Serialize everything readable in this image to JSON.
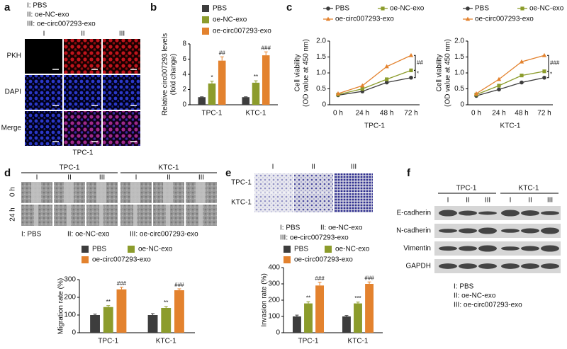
{
  "panel_labels": [
    "a",
    "b",
    "c",
    "d",
    "e",
    "f"
  ],
  "panel_a": {
    "legend": [
      "I: PBS",
      "II: oe-NC-exo",
      "III: oe-circ007293-exo"
    ],
    "columns": [
      "I",
      "II",
      "III"
    ],
    "rows": [
      "PKH",
      "DAPI",
      "Merge"
    ],
    "caption": "TPC-1"
  },
  "chart_data": [
    {
      "type": "bar",
      "ylabel": [
        "Relative circ007293 levels",
        "(fold change)"
      ],
      "categories": [
        "TPC-1",
        "KTC-1"
      ],
      "ylim": [
        0,
        8
      ],
      "yticks": [
        0,
        2,
        4,
        6,
        8
      ],
      "series": [
        {
          "name": "PBS",
          "color": "#3d3d3d",
          "values": [
            1,
            1
          ],
          "errors": [
            0.05,
            0.05
          ]
        },
        {
          "name": "oe-NC-exo",
          "color": "#8c9c2c",
          "values": [
            2.8,
            2.9
          ],
          "errors": [
            0.3,
            0.25
          ],
          "annotations": [
            "*",
            "**"
          ]
        },
        {
          "name": "oe-circ007293-exo",
          "color": "#e3822e",
          "values": [
            5.8,
            6.5
          ],
          "errors": [
            0.5,
            0.45
          ],
          "annotations": [
            "##",
            "###"
          ]
        }
      ]
    },
    {
      "type": "line",
      "ylabel": [
        "Cell viability",
        "(OD value at 450 nm)"
      ],
      "xlabel": "TPC-1",
      "categories": [
        "0 h",
        "24 h",
        "48 h",
        "72 h"
      ],
      "ylim": [
        0,
        2
      ],
      "yticks": [
        0,
        0.5,
        {
          "value": 1,
          "label": "1.0"
        },
        1.5,
        {
          "value": 2,
          "label": "2.0"
        }
      ],
      "series": [
        {
          "name": "PBS",
          "color": "#3d3d3d",
          "marker": "circle",
          "values": [
            0.3,
            0.42,
            0.7,
            0.85
          ]
        },
        {
          "name": "oe-NC-exo",
          "color": "#8c9c2c",
          "marker": "square",
          "values": [
            0.32,
            0.5,
            0.8,
            1.08
          ]
        },
        {
          "name": "oe-circ007293-exo",
          "color": "#e3822e",
          "marker": "triangle",
          "values": [
            0.35,
            0.6,
            1.2,
            1.55
          ]
        }
      ],
      "significance": [
        "##",
        "*"
      ]
    },
    {
      "type": "line",
      "ylabel": [
        "Cell viability",
        "(OD value at 450 nm)"
      ],
      "xlabel": "KTC-1",
      "categories": [
        "0 h",
        "24 h",
        "48 h",
        "72 h"
      ],
      "ylim": [
        0,
        2
      ],
      "yticks": [
        0,
        0.5,
        {
          "value": 1,
          "label": "1.0"
        },
        1.5,
        {
          "value": 2,
          "label": "2.0"
        }
      ],
      "series": [
        {
          "name": "PBS",
          "color": "#3d3d3d",
          "marker": "circle",
          "values": [
            0.28,
            0.48,
            0.7,
            0.85
          ]
        },
        {
          "name": "oe-NC-exo",
          "color": "#8c9c2c",
          "marker": "square",
          "values": [
            0.32,
            0.6,
            0.92,
            1.05
          ]
        },
        {
          "name": "oe-circ007293-exo",
          "color": "#e3822e",
          "marker": "triangle",
          "values": [
            0.35,
            0.8,
            1.35,
            1.55
          ]
        }
      ],
      "significance": [
        "###",
        "*"
      ]
    },
    {
      "type": "bar",
      "ylabel": [
        "Migration rate (%)"
      ],
      "categories": [
        "TPC-1",
        "KTC-1"
      ],
      "ylim": [
        0,
        300
      ],
      "yticks": [
        0,
        100,
        200,
        300
      ],
      "series": [
        {
          "name": "PBS",
          "color": "#3d3d3d",
          "values": [
            100,
            100
          ],
          "errors": [
            5,
            8
          ]
        },
        {
          "name": "oe-NC-exo",
          "color": "#8c9c2c",
          "values": [
            145,
            140
          ],
          "errors": [
            8,
            8
          ],
          "annotations": [
            "**",
            "**"
          ]
        },
        {
          "name": "oe-circ007293-exo",
          "color": "#e3822e",
          "values": [
            245,
            240
          ],
          "errors": [
            12,
            8
          ],
          "annotations": [
            "###",
            "###"
          ]
        }
      ]
    },
    {
      "type": "bar",
      "ylabel": [
        "Invasion rate (%)"
      ],
      "categories": [
        "TPC-1",
        "KTC-1"
      ],
      "ylim": [
        0,
        400
      ],
      "yticks": [
        0,
        100,
        200,
        300,
        400
      ],
      "series": [
        {
          "name": "PBS",
          "color": "#3d3d3d",
          "values": [
            100,
            100
          ],
          "errors": [
            8,
            6
          ]
        },
        {
          "name": "oe-NC-exo",
          "color": "#8c9c2c",
          "values": [
            180,
            180
          ],
          "errors": [
            10,
            8
          ],
          "annotations": [
            "**",
            "***"
          ]
        },
        {
          "name": "oe-circ007293-exo",
          "color": "#e3822e",
          "values": [
            290,
            300
          ],
          "errors": [
            20,
            12
          ],
          "annotations": [
            "###",
            "###"
          ]
        }
      ]
    }
  ],
  "panel_d": {
    "groups": [
      "TPC-1",
      "KTC-1"
    ],
    "columns": [
      "I",
      "II",
      "III",
      "I",
      "II",
      "III"
    ],
    "rows": [
      "0 h",
      "24 h"
    ],
    "caption": [
      "I: PBS",
      "II: oe-NC-exo",
      "III: oe-circ007293-exo"
    ]
  },
  "panel_e": {
    "columns": [
      "I",
      "II",
      "III"
    ],
    "rows": [
      "TPC-1",
      "KTC-1"
    ],
    "caption": [
      "I: PBS",
      "II: oe-NC-exo",
      "III: oe-circ007293-exo"
    ]
  },
  "panel_f": {
    "groups": [
      "TPC-1",
      "KTC-1"
    ],
    "lanes": [
      "I",
      "II",
      "III",
      "I",
      "II",
      "III"
    ],
    "rows": [
      "E-cadherin",
      "N-cadherin",
      "Vimentin",
      "GAPDH"
    ],
    "caption": [
      "I: PBS",
      "II: oe-NC-exo",
      "III: oe-circ007293-exo"
    ]
  }
}
